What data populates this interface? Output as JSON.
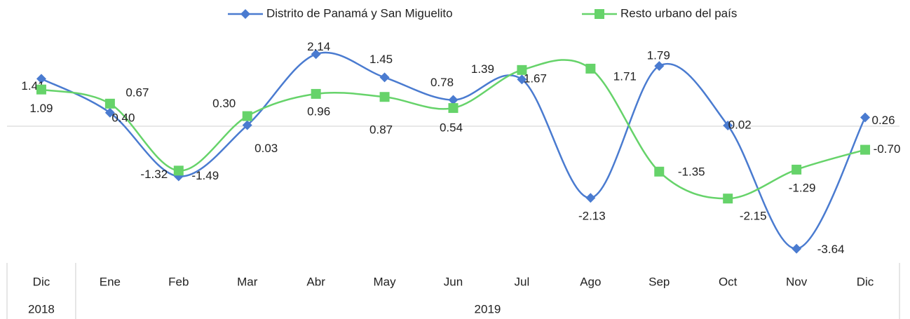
{
  "chart_data": {
    "type": "line",
    "categories": [
      "Dic",
      "Ene",
      "Feb",
      "Mar",
      "Abr",
      "May",
      "Jun",
      "Jul",
      "Ago",
      "Sep",
      "Oct",
      "Nov",
      "Dic"
    ],
    "category_groups": [
      {
        "label": "2018",
        "count": 1
      },
      {
        "label": "2019",
        "count": 12
      }
    ],
    "series": [
      {
        "name": "Distrito de Panamá y San Miguelito",
        "color": "#4a7bd0",
        "marker": "diamond",
        "values": [
          1.41,
          0.4,
          -1.49,
          0.03,
          2.14,
          1.45,
          0.78,
          1.39,
          -2.13,
          1.79,
          0.02,
          -3.64,
          0.26
        ],
        "value_labels": [
          "1.41",
          "0.40",
          "-1.49",
          "0.03",
          "2.14",
          "1.45",
          "0.78",
          "1.39",
          "-2.13",
          "1.79",
          "0.02",
          "-3.64",
          "0.26"
        ]
      },
      {
        "name": "Resto urbano del país",
        "color": "#66d36a",
        "marker": "square",
        "values": [
          1.09,
          0.67,
          -1.32,
          0.3,
          0.96,
          0.87,
          0.54,
          1.67,
          1.71,
          -1.35,
          -2.15,
          -1.29,
          -0.7
        ],
        "value_labels": [
          "1.09",
          "0.67",
          "-1.32",
          "0.30",
          "0.96",
          "0.87",
          "0.54",
          "1.67",
          "1.71",
          "-1.35",
          "-2.15",
          "-1.29",
          "-0.70"
        ]
      }
    ],
    "legend": "top"
  }
}
